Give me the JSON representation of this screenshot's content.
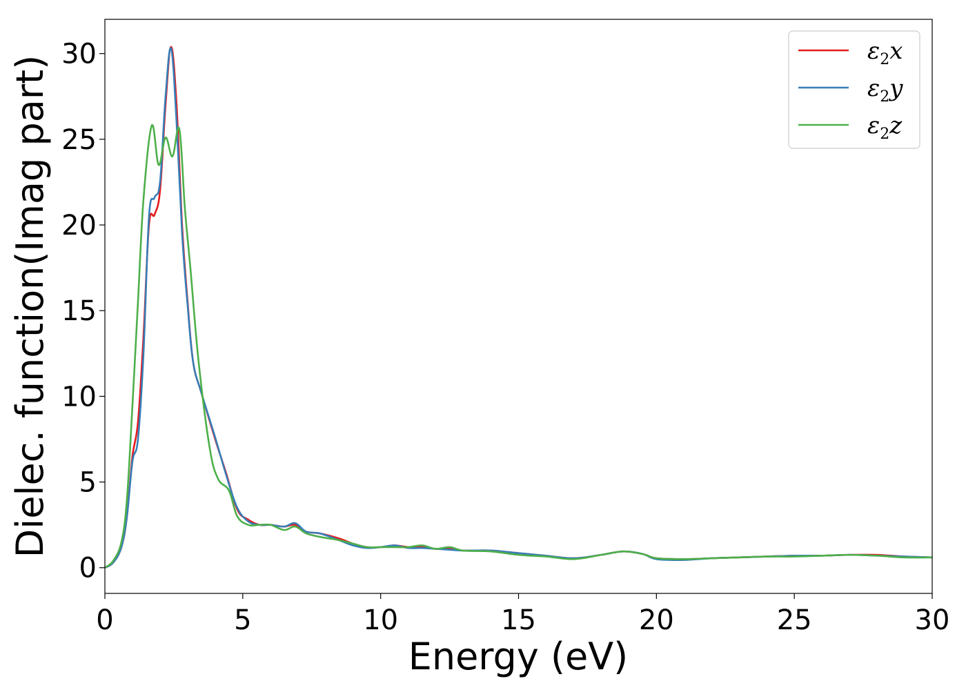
{
  "chart_data": {
    "type": "line",
    "title": "",
    "xlabel": "Energy (eV)",
    "ylabel": "Dielec. function(Imag part)",
    "xlim": [
      0,
      30
    ],
    "ylim": [
      -1.5,
      32
    ],
    "xticks": [
      0,
      5,
      10,
      15,
      20,
      25,
      30
    ],
    "yticks": [
      0,
      5,
      10,
      15,
      20,
      25,
      30
    ],
    "grid": false,
    "legend_position": "top-right",
    "series": [
      {
        "name": "ε₂x",
        "legend_base": "ε",
        "legend_sub": "2",
        "legend_var": "x",
        "color": "#e41a1c",
        "x": [
          0,
          0.3,
          0.6,
          0.8,
          1.0,
          1.2,
          1.4,
          1.6,
          1.8,
          2.0,
          2.2,
          2.4,
          2.6,
          2.8,
          3.0,
          3.2,
          3.5,
          4.0,
          4.4,
          4.8,
          5.2,
          5.6,
          6.0,
          6.5,
          6.9,
          7.3,
          7.8,
          8.5,
          9.0,
          9.5,
          10.0,
          10.5,
          11.0,
          11.5,
          12.0,
          12.5,
          13.0,
          14.0,
          15.0,
          16.0,
          17.0,
          18.0,
          18.8,
          19.5,
          20.0,
          21.0,
          22.0,
          23.0,
          24.0,
          25.0,
          26.0,
          27.0,
          28.0,
          29.0,
          30.0
        ],
        "y": [
          0,
          0.3,
          1.2,
          3.0,
          6.5,
          8.5,
          13.5,
          20.0,
          20.6,
          22.0,
          27.0,
          30.4,
          27.0,
          20.0,
          15.5,
          12.0,
          10.2,
          7.5,
          5.5,
          3.4,
          2.8,
          2.5,
          2.5,
          2.4,
          2.5,
          2.1,
          2.0,
          1.7,
          1.4,
          1.2,
          1.2,
          1.3,
          1.2,
          1.2,
          1.1,
          1.1,
          1.0,
          1.0,
          0.85,
          0.7,
          0.55,
          0.75,
          0.95,
          0.8,
          0.55,
          0.5,
          0.55,
          0.6,
          0.65,
          0.7,
          0.7,
          0.75,
          0.75,
          0.65,
          0.6
        ]
      },
      {
        "name": "ε₂y",
        "legend_base": "ε",
        "legend_sub": "2",
        "legend_var": "y",
        "color": "#377eb8",
        "x": [
          0,
          0.3,
          0.6,
          0.8,
          1.0,
          1.2,
          1.4,
          1.6,
          1.8,
          2.0,
          2.2,
          2.4,
          2.6,
          2.8,
          3.0,
          3.2,
          3.5,
          4.0,
          4.4,
          4.8,
          5.2,
          5.6,
          6.0,
          6.5,
          6.9,
          7.3,
          7.8,
          8.5,
          9.0,
          9.5,
          10.0,
          10.5,
          11.0,
          11.5,
          12.0,
          12.5,
          13.0,
          14.0,
          15.0,
          16.0,
          17.0,
          18.0,
          18.8,
          19.5,
          20.0,
          21.0,
          22.0,
          23.0,
          24.0,
          25.0,
          26.0,
          27.0,
          28.0,
          29.0,
          30.0
        ],
        "y": [
          0,
          0.3,
          1.2,
          3.0,
          6.2,
          7.5,
          12.5,
          20.5,
          21.6,
          22.5,
          27.5,
          30.3,
          26.0,
          19.5,
          15.3,
          12.0,
          10.2,
          7.6,
          5.4,
          3.5,
          2.7,
          2.5,
          2.5,
          2.4,
          2.6,
          2.1,
          2.0,
          1.6,
          1.3,
          1.15,
          1.2,
          1.3,
          1.15,
          1.15,
          1.1,
          1.05,
          1.0,
          1.0,
          0.85,
          0.7,
          0.55,
          0.75,
          0.95,
          0.8,
          0.5,
          0.45,
          0.55,
          0.6,
          0.65,
          0.7,
          0.7,
          0.75,
          0.7,
          0.65,
          0.6
        ]
      },
      {
        "name": "ε₂z",
        "legend_base": "ε",
        "legend_sub": "2",
        "legend_var": "z",
        "color": "#4daf4a",
        "x": [
          0,
          0.3,
          0.6,
          0.8,
          1.0,
          1.2,
          1.4,
          1.7,
          1.95,
          2.2,
          2.45,
          2.7,
          2.9,
          3.1,
          3.4,
          3.8,
          4.1,
          4.5,
          4.8,
          5.2,
          5.6,
          6.0,
          6.5,
          6.9,
          7.3,
          7.8,
          8.5,
          9.0,
          9.5,
          10.0,
          10.5,
          11.0,
          11.5,
          12.0,
          12.5,
          13.0,
          14.0,
          15.0,
          16.0,
          17.0,
          18.0,
          18.8,
          19.5,
          20.0,
          21.0,
          22.0,
          23.0,
          24.0,
          25.0,
          26.0,
          27.0,
          28.0,
          29.0,
          30.0
        ],
        "y": [
          0,
          0.4,
          1.5,
          4.0,
          9.5,
          15.5,
          21.5,
          25.8,
          23.5,
          25.1,
          24.0,
          25.6,
          21.0,
          17.5,
          12.0,
          7.0,
          5.2,
          4.5,
          3.0,
          2.5,
          2.5,
          2.5,
          2.2,
          2.4,
          2.0,
          1.8,
          1.6,
          1.4,
          1.2,
          1.2,
          1.2,
          1.2,
          1.3,
          1.1,
          1.2,
          1.0,
          0.95,
          0.75,
          0.65,
          0.5,
          0.75,
          0.95,
          0.8,
          0.55,
          0.5,
          0.55,
          0.6,
          0.65,
          0.65,
          0.7,
          0.75,
          0.7,
          0.6,
          0.6
        ]
      }
    ]
  }
}
